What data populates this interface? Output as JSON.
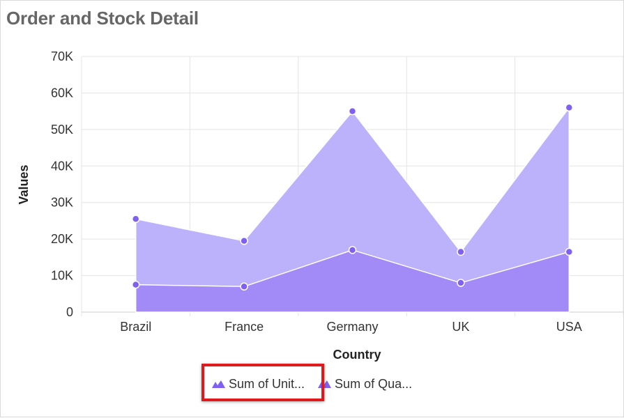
{
  "title": "Order and Stock Detail",
  "colors": {
    "series_back": "#bcb2fb",
    "series_front": "#a38bf7",
    "marker": "#8060f0",
    "grid": "#e4e4e4",
    "highlight": "#e0191d"
  },
  "legend": {
    "items": [
      {
        "label": "Sum of Unit...",
        "icon": "area-chart-icon"
      },
      {
        "label": "Sum of Qua...",
        "icon": "area-chart-icon"
      }
    ],
    "position": "bottom"
  },
  "chart_data": {
    "type": "area",
    "title": "Order and Stock Detail",
    "xlabel": "Country",
    "ylabel": "Values",
    "categories": [
      "Brazil",
      "France",
      "Germany",
      "UK",
      "USA"
    ],
    "ylim": [
      0,
      70000
    ],
    "yticks": [
      0,
      10000,
      20000,
      30000,
      40000,
      50000,
      60000,
      70000
    ],
    "ytick_labels": [
      "0",
      "10K",
      "20K",
      "30K",
      "40K",
      "50K",
      "60K",
      "70K"
    ],
    "grid": true,
    "series": [
      {
        "name": "Sum of Unit...",
        "values": [
          25500,
          19500,
          55000,
          16500,
          56000
        ]
      },
      {
        "name": "Sum of Qua...",
        "values": [
          7500,
          7000,
          17000,
          8000,
          16500
        ]
      }
    ]
  }
}
